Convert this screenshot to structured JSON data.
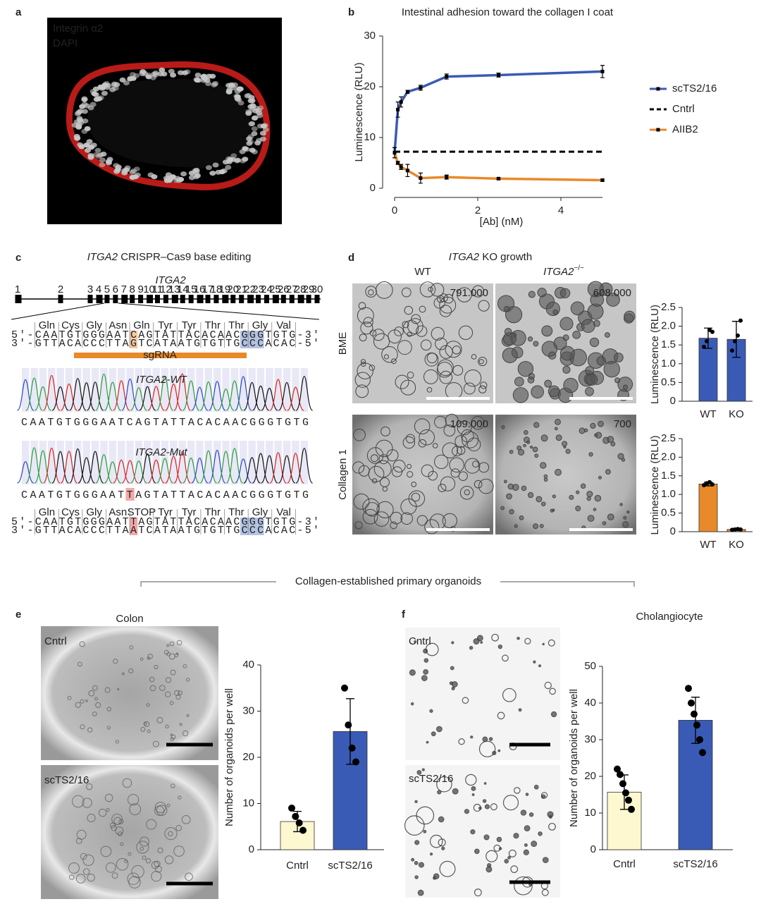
{
  "figure": {
    "panels": [
      "a",
      "b",
      "c",
      "d",
      "e",
      "f"
    ],
    "a": {
      "labels": [
        "Integrin α2",
        "DAPI"
      ]
    },
    "c": {
      "title": {
        "gene": "ITGA2",
        "rest": " CRISPR–Cas9 base editing"
      },
      "gene_label": "ITGA2",
      "exons": [
        "1",
        "2",
        "3",
        "4",
        "5",
        "6",
        "7",
        "8",
        "9",
        "10",
        "11",
        "12",
        "13",
        "14",
        "15",
        "16",
        "17",
        "18",
        "19",
        "20",
        "21",
        "22",
        "23",
        "24",
        "25",
        "26",
        "27",
        "28",
        "29",
        "30"
      ],
      "top": {
        "codons": [
          "Gln",
          "Cys",
          "Gly",
          "Asn",
          "Gln",
          "Tyr",
          "Tyr",
          "Thr",
          "Thr",
          "Gly",
          "Val"
        ],
        "strand5": "5'-CAATGTGGGAATCAGTATTACACAACGGGTGTG-3'",
        "strand3": "3'-GTTACACCCTTAGTCATAATGTGTTGCCCACAC-5'",
        "guide": "sgRNA"
      },
      "wt": {
        "gene": "ITGA2",
        "suffix": "-WT",
        "sequence": "CAATGTGGGAATCAGTATTACACAACGGGTGTG"
      },
      "mut": {
        "gene": "ITGA2",
        "suffix": "-Mut",
        "sequence": "CAATGTGGGAATTAGTATTACACAACGGGTGTG"
      },
      "bottom": {
        "codons": [
          "Gln",
          "Cys",
          "Gly",
          "Asn",
          "STOP",
          "Tyr",
          "Tyr",
          "Thr",
          "Thr",
          "Gly",
          "Val"
        ],
        "strand5": "5'-CAATGTGGGAATTAGTATTACACAACGGGTGTG-3'",
        "strand3": "3'-GTTACACCCTTAATCATAATGTGTTGCCCACAC-5'"
      }
    },
    "d": {
      "title": {
        "gene": "ITGA2",
        "rest": " KO growth"
      },
      "col_wt": "WT",
      "col_ko": {
        "gene": "ITGA2",
        "sup": "−/−"
      },
      "row_bme": "BME",
      "row_collagen": "Collagen 1",
      "counts": [
        "791.000",
        "608.000",
        "109.000",
        "700"
      ]
    },
    "bracket": "Collagen-established primary organoids",
    "e": {
      "title": "Colon",
      "images": [
        "Cntrl",
        "scTS2/16"
      ]
    },
    "f": {
      "title": "Cholangiocyte",
      "images": [
        "Cntrl",
        "scTS2/16"
      ]
    }
  },
  "chart_data": [
    {
      "type": "line",
      "title": "Intestinal adhesion toward the collagen I coat",
      "xlabel": "[Ab] (nM)",
      "ylabel": "Luminescence (RLU)",
      "x": [
        0,
        0.078,
        0.156,
        0.3125,
        0.625,
        1.25,
        2.5,
        5
      ],
      "xlim": [
        0,
        5
      ],
      "xticks": [
        0,
        2,
        4
      ],
      "ylim": [
        0,
        30
      ],
      "yticks": [
        0,
        10,
        20,
        30
      ],
      "series": [
        {
          "name": "scTS2/16",
          "color": "#3a5bb5",
          "values": [
            7,
            15.5,
            17,
            19,
            19.8,
            22,
            22.3,
            23
          ],
          "errors": [
            1,
            1.5,
            1,
            0.3,
            0.5,
            0.5,
            0.4,
            1.2
          ],
          "markers": true,
          "dashed": false
        },
        {
          "name": "Cntrl",
          "color": "#000000",
          "values": [
            7.2,
            7.2,
            7.2,
            7.2,
            7.2,
            7.2,
            7.2,
            7.2
          ],
          "markers": false,
          "dashed": true
        },
        {
          "name": "AIIB2",
          "color": "#e8892a",
          "values": [
            7,
            5,
            4.2,
            3.5,
            2,
            2.2,
            1.9,
            1.6
          ],
          "errors": [
            1,
            0.3,
            0.5,
            1.2,
            1,
            0.4,
            0.2,
            0.2
          ],
          "markers": true,
          "dashed": false
        }
      ]
    },
    {
      "type": "bar",
      "ylabel": "Luminescence (RLU)",
      "categories": [
        "WT",
        "KO"
      ],
      "values": [
        1.68,
        1.65
      ],
      "errors": [
        0.27,
        0.48
      ],
      "points": [
        [
          1.45,
          1.6,
          1.9,
          1.85
        ],
        [
          1.35,
          1.6,
          1.75,
          2.15
        ]
      ],
      "colors": [
        "#3a5bb5",
        "#3a5bb5"
      ],
      "ylim": [
        0,
        2.5
      ],
      "yticks": [
        0,
        0.5,
        {
          "value": 1,
          "label": "1.0"
        },
        1.5,
        {
          "value": 2,
          "label": "2.0"
        },
        2.5
      ]
    },
    {
      "type": "bar",
      "ylabel": "Luminescence (RLU)",
      "categories": [
        "WT",
        "KO"
      ],
      "values": [
        1.28,
        0.06
      ],
      "errors": [
        0.05,
        0.02
      ],
      "points": [
        [
          1.25,
          1.3,
          1.33,
          1.27
        ],
        [
          0.05,
          0.06,
          0.07,
          0.06
        ]
      ],
      "colors": [
        "#e8892a",
        "#e8892a"
      ],
      "ylim": [
        0,
        2.5
      ],
      "yticks": [
        0,
        0.5,
        {
          "value": 1,
          "label": "1.0"
        },
        1.5,
        {
          "value": 2,
          "label": "2.0"
        },
        2.5
      ]
    },
    {
      "type": "bar",
      "ylabel": "Number of organoids per well",
      "categories": [
        "Cntrl",
        "scTS2/16"
      ],
      "values": [
        6.1,
        25.6
      ],
      "errors": [
        2.2,
        7.1
      ],
      "points": [
        [
          9,
          7.2,
          5.8,
          4.2
        ],
        [
          35,
          27,
          22,
          19
        ]
      ],
      "colors": [
        "#fdf8d0",
        "#3a5bb5"
      ],
      "ylim": [
        0,
        40
      ],
      "yticks": [
        0,
        10,
        20,
        30,
        40
      ]
    },
    {
      "type": "bar",
      "ylabel": "Number of organoids per well",
      "categories": [
        "Cntrl",
        "scTS2/16"
      ],
      "values": [
        15.7,
        35.3
      ],
      "errors": [
        4.7,
        6.3
      ],
      "points": [
        [
          22,
          20.5,
          18,
          15.5,
          13.5,
          11
        ],
        [
          44,
          40,
          37,
          34,
          30,
          26.5
        ]
      ],
      "colors": [
        "#fdf8d0",
        "#3a5bb5"
      ],
      "ylim": [
        0,
        50
      ],
      "yticks": [
        0,
        10,
        20,
        30,
        40,
        50
      ]
    }
  ]
}
